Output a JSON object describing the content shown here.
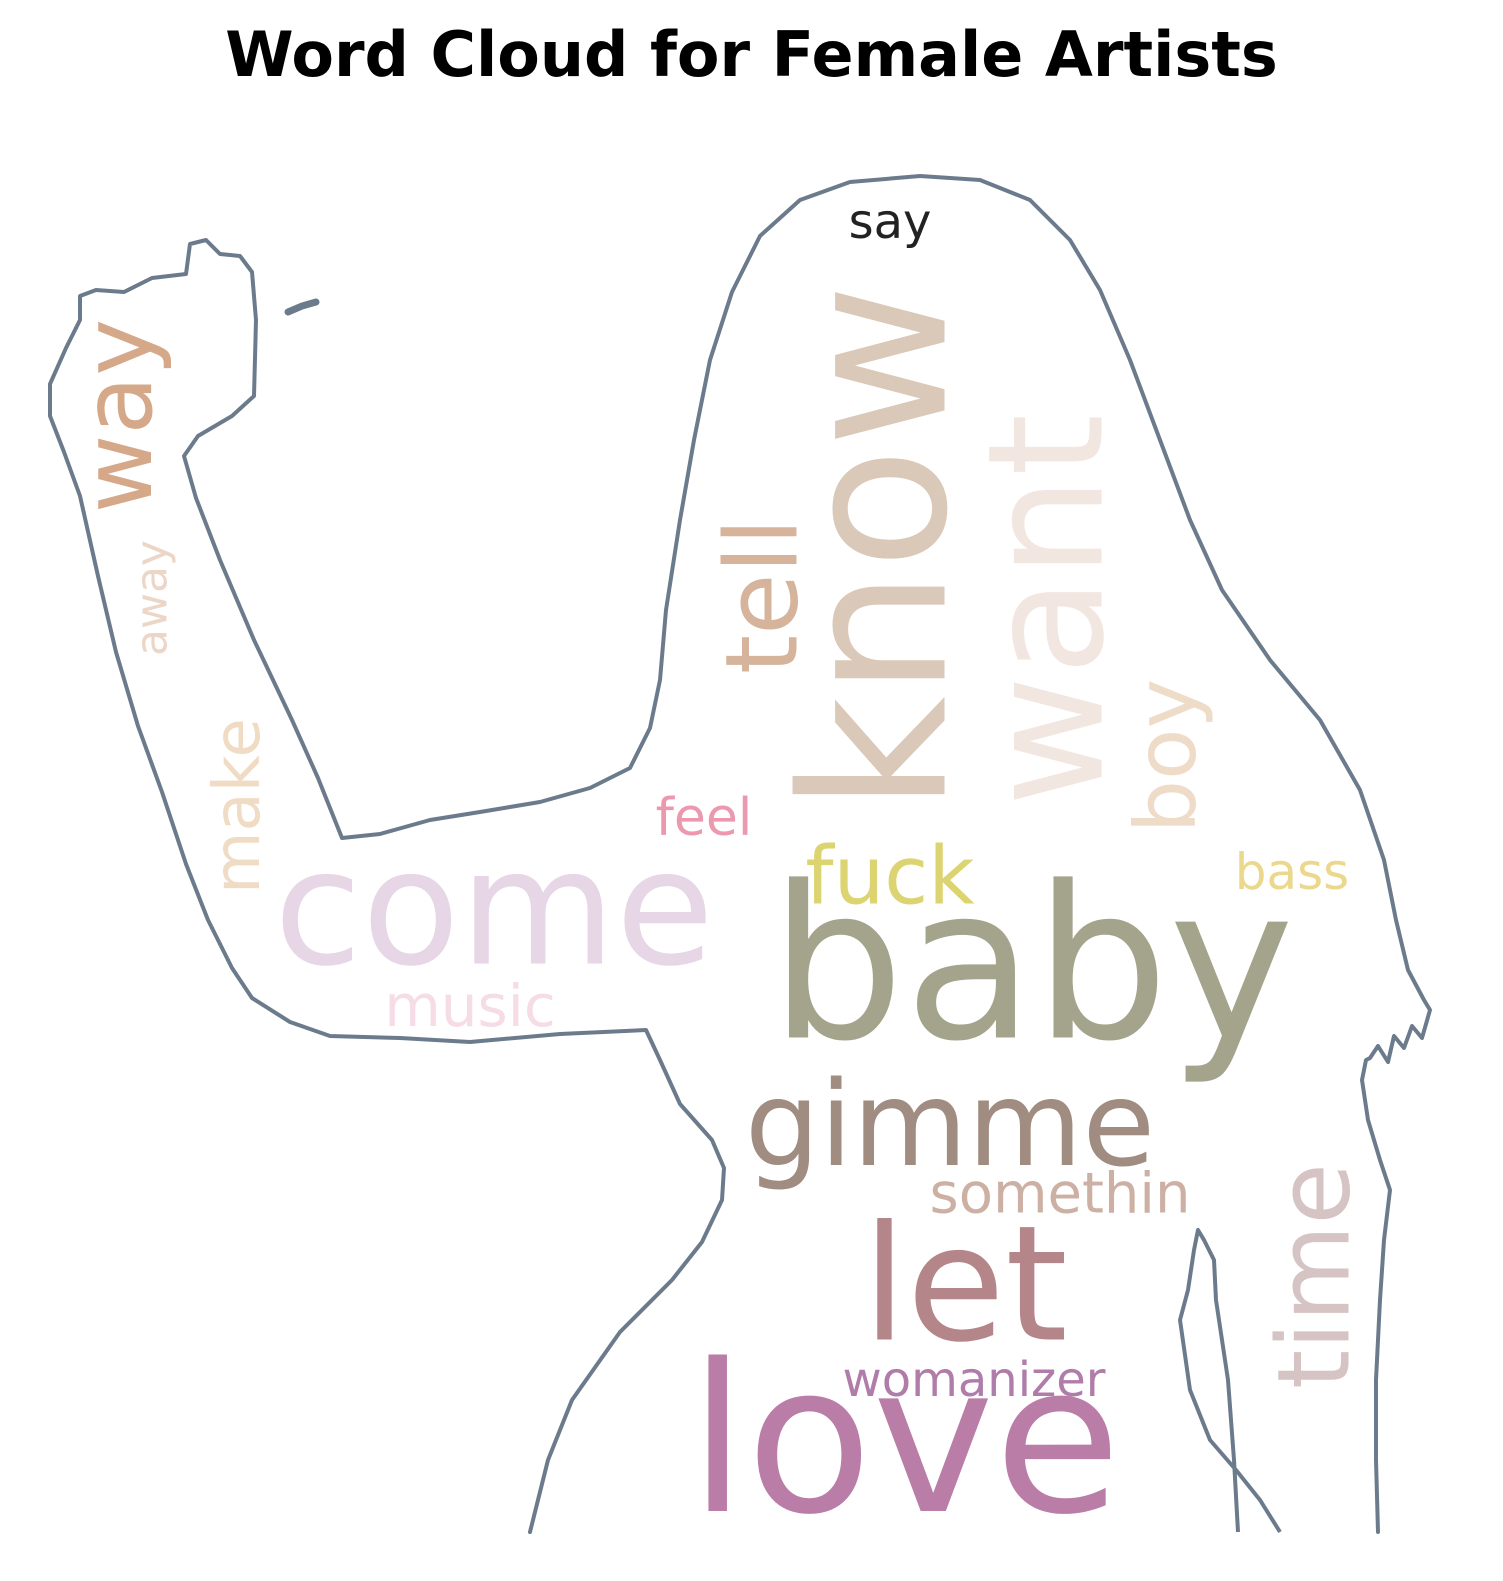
{
  "chart_data": {
    "type": "wordcloud",
    "title": "Word Cloud for Female Artists",
    "outline_color": "#6b7b8c",
    "words": [
      {
        "text": "baby",
        "rank": 1,
        "color": "#a4a48c",
        "orientation": "horizontal"
      },
      {
        "text": "love",
        "rank": 2,
        "color": "#b97da8",
        "orientation": "horizontal"
      },
      {
        "text": "know",
        "rank": 3,
        "color": "#dac8b8",
        "orientation": "vertical"
      },
      {
        "text": "come",
        "rank": 4,
        "color": "#e6d6e6",
        "orientation": "horizontal"
      },
      {
        "text": "want",
        "rank": 5,
        "color": "#f2e6e0",
        "orientation": "vertical"
      },
      {
        "text": "let",
        "rank": 6,
        "color": "#b4868a",
        "orientation": "horizontal"
      },
      {
        "text": "gimme",
        "rank": 7,
        "color": "#a08c80",
        "orientation": "horizontal"
      },
      {
        "text": "tell",
        "rank": 8,
        "color": "#d6b49c",
        "orientation": "vertical"
      },
      {
        "text": "way",
        "rank": 9,
        "color": "#d4a888",
        "orientation": "vertical"
      },
      {
        "text": "time",
        "rank": 10,
        "color": "#d6c4c4",
        "orientation": "vertical"
      },
      {
        "text": "boy",
        "rank": 11,
        "color": "#eedcc8",
        "orientation": "vertical"
      },
      {
        "text": "fuck",
        "rank": 12,
        "color": "#dcd470",
        "orientation": "horizontal"
      },
      {
        "text": "make",
        "rank": 13,
        "color": "#f0dcc4",
        "orientation": "vertical"
      },
      {
        "text": "somethin",
        "rank": 14,
        "color": "#ccb0a4",
        "orientation": "horizontal"
      },
      {
        "text": "music",
        "rank": 15,
        "color": "#f6dce6",
        "orientation": "horizontal"
      },
      {
        "text": "feel",
        "rank": 16,
        "color": "#ec98ae",
        "orientation": "horizontal"
      },
      {
        "text": "bass",
        "rank": 17,
        "color": "#ecd88c",
        "orientation": "horizontal"
      },
      {
        "text": "womanizer",
        "rank": 18,
        "color": "#b07caa",
        "orientation": "horizontal"
      },
      {
        "text": "away",
        "rank": 19,
        "color": "#ecd6c8",
        "orientation": "vertical"
      },
      {
        "text": "say",
        "rank": 20,
        "color": "#222222",
        "orientation": "horizontal"
      }
    ]
  }
}
